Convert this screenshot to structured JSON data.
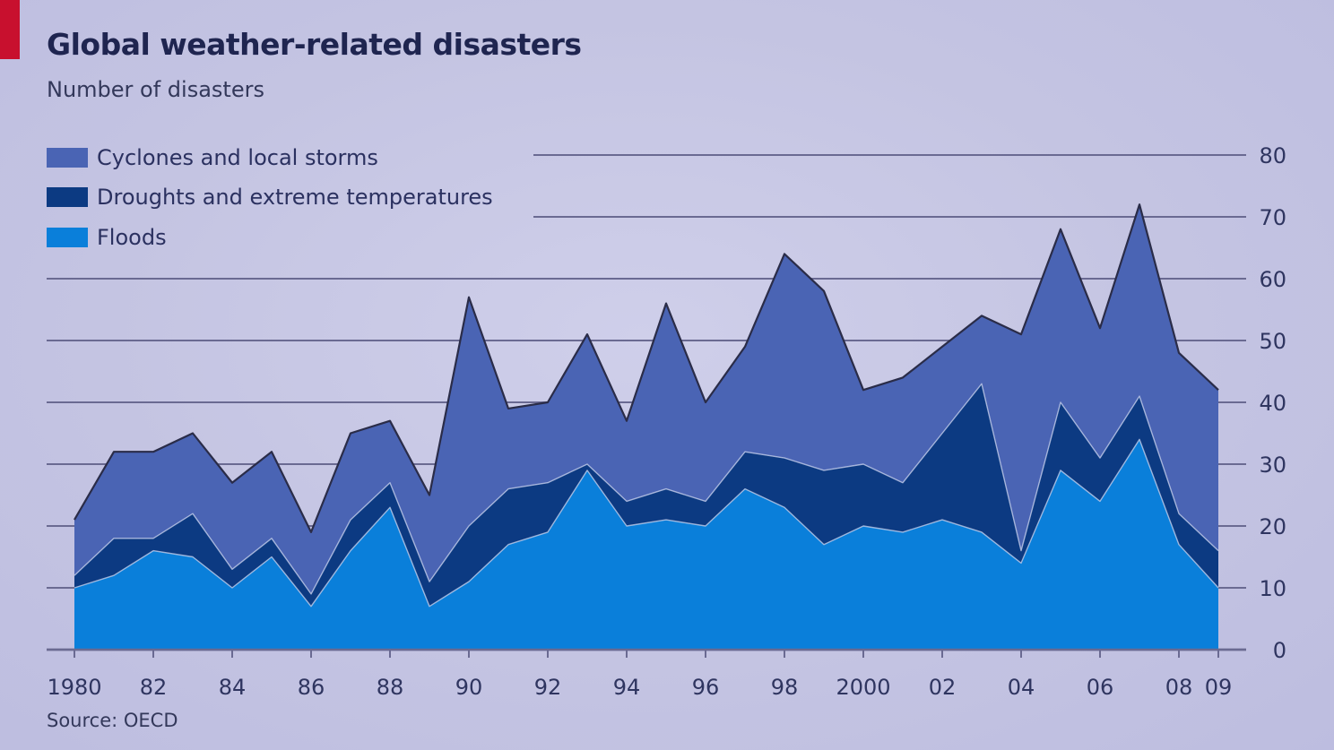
{
  "colors": {
    "accent_tab": "#c8102e",
    "cyclones": "#4a64b4",
    "droughts": "#0c3a82",
    "floods": "#0a7fda",
    "gridline": "#6a6a92",
    "outline": "#2a2c48"
  },
  "header": {
    "title": "Global weather-related disasters",
    "subtitle": "Number of disasters"
  },
  "legend": {
    "items": [
      {
        "label": "Cyclones and local storms",
        "color_key": "cyclones"
      },
      {
        "label": "Droughts and extreme temperatures",
        "color_key": "droughts"
      },
      {
        "label": "Floods",
        "color_key": "floods"
      }
    ]
  },
  "footer": {
    "source": "Source: OECD"
  },
  "chart_data": {
    "type": "area",
    "stacked": true,
    "title": "Global weather-related disasters",
    "subtitle": "Number of disasters",
    "ylabel": "",
    "xlabel": "",
    "ylim": [
      0,
      80
    ],
    "xlim": [
      1980,
      2009
    ],
    "grid": true,
    "legend_position": "top-left",
    "y_axis_position": "right",
    "y_ticks": [
      0,
      10,
      20,
      30,
      40,
      50,
      60,
      70,
      80
    ],
    "x_ticks": [
      1980,
      1982,
      1984,
      1986,
      1988,
      1990,
      1992,
      1994,
      1996,
      1998,
      2000,
      2002,
      2004,
      2006,
      2008,
      2009
    ],
    "x_tick_labels": [
      "1980",
      "82",
      "84",
      "86",
      "88",
      "90",
      "92",
      "94",
      "96",
      "98",
      "2000",
      "02",
      "04",
      "06",
      "08",
      "09"
    ],
    "x": [
      1980,
      1981,
      1982,
      1983,
      1984,
      1985,
      1986,
      1987,
      1988,
      1989,
      1990,
      1991,
      1992,
      1993,
      1994,
      1995,
      1996,
      1997,
      1998,
      1999,
      2000,
      2001,
      2002,
      2003,
      2004,
      2005,
      2006,
      2007,
      2008,
      2009
    ],
    "series": [
      {
        "name": "Floods",
        "color_key": "floods",
        "values": [
          10,
          12,
          16,
          15,
          10,
          15,
          7,
          16,
          23,
          7,
          11,
          17,
          19,
          29,
          20,
          21,
          20,
          26,
          23,
          17,
          20,
          19,
          21,
          19,
          14,
          29,
          24,
          34,
          17,
          10
        ]
      },
      {
        "name": "Droughts and extreme temperatures",
        "color_key": "droughts",
        "values": [
          2,
          6,
          2,
          7,
          3,
          3,
          2,
          5,
          4,
          4,
          9,
          9,
          8,
          1,
          4,
          5,
          4,
          6,
          8,
          12,
          10,
          8,
          14,
          24,
          2,
          11,
          7,
          7,
          5,
          6
        ]
      },
      {
        "name": "Cyclones and local storms",
        "color_key": "cyclones",
        "values": [
          9,
          14,
          14,
          13,
          14,
          14,
          10,
          14,
          10,
          14,
          37,
          13,
          13,
          21,
          13,
          30,
          16,
          17,
          33,
          29,
          12,
          17,
          14,
          11,
          35,
          28,
          21,
          31,
          26,
          26
        ]
      }
    ]
  }
}
